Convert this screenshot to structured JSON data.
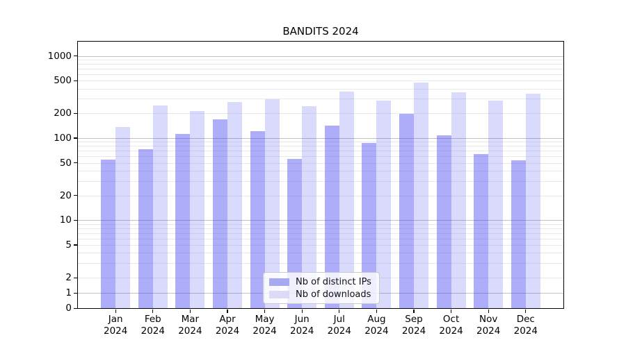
{
  "title": "BANDITS 2024",
  "legend": {
    "items": [
      {
        "label": "Nb of distinct IPs",
        "fill": "#a9a9f2"
      },
      {
        "label": "Nb of downloads",
        "fill": "#dadaf9"
      }
    ],
    "position": "lower center"
  },
  "colors": {
    "series1_bar": "rgba(60,60,240,0.42)",
    "series2_bar": "rgba(60,60,240,0.19)",
    "grid_major": "#c0c0c0",
    "grid_minor": "#eaeaea",
    "axis": "#000000",
    "background": "#ffffff"
  },
  "chart_data": {
    "type": "bar",
    "title": "BANDITS 2024",
    "categories": [
      "Jan",
      "Feb",
      "Mar",
      "Apr",
      "May",
      "Jun",
      "Jul",
      "Aug",
      "Sep",
      "Oct",
      "Nov",
      "Dec"
    ],
    "year": "2024",
    "series": [
      {
        "name": "Nb of distinct IPs",
        "values": [
          55,
          73,
          112,
          169,
          122,
          56,
          142,
          87,
          196,
          108,
          64,
          54
        ]
      },
      {
        "name": "Nb of downloads",
        "values": [
          137,
          251,
          213,
          276,
          299,
          246,
          370,
          286,
          474,
          363,
          287,
          347
        ]
      }
    ],
    "y_ticks": [
      0,
      1,
      2,
      5,
      10,
      20,
      50,
      100,
      200,
      500,
      1000
    ],
    "yscale": "symlog",
    "ylim": [
      0,
      1500
    ],
    "xlabel": "",
    "ylabel": "",
    "grid": "horizontal; dark lines at powers of 10, light minor lines at 2-9 multiples",
    "legend_position": "lower center"
  }
}
